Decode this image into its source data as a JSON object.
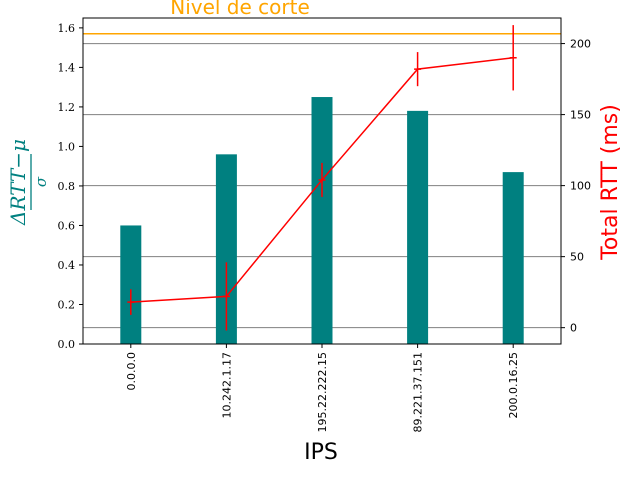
{
  "chart_data": {
    "type": "bar",
    "xlabel": "IPS",
    "categories": [
      "0.0.0.0",
      "10.242.1.17",
      "195.22.222.15",
      "89.221.37.151",
      "200.0.16.25"
    ],
    "ylabel_left": {
      "numerator": "ΔRTT−μ",
      "denominator": "σ"
    },
    "ylabel_right": "Total RTT (ms)",
    "left_axis": {
      "ylim": [
        0,
        1.65
      ],
      "ticks": [
        "0.0",
        "0.2",
        "0.4",
        "0.6",
        "0.8",
        "1.0",
        "1.2",
        "1.4",
        "1.6"
      ]
    },
    "right_axis": {
      "ylim": [
        -11.5,
        218
      ],
      "ticks": [
        "0",
        "50",
        "100",
        "150",
        "200"
      ]
    },
    "bars": {
      "name": "ΔRTT−μ / σ",
      "color": "#008080",
      "values": [
        0.6,
        0.96,
        1.25,
        1.18,
        0.87
      ]
    },
    "line": {
      "name": "Total RTT (ms)",
      "color": "#ff0000",
      "values": [
        18,
        22,
        104,
        182,
        190
      ],
      "errors": [
        9,
        24,
        12,
        12,
        23
      ]
    },
    "cutoff": {
      "label": "Nivel de corte",
      "value": 1.57,
      "color": "#ffa500"
    },
    "gridlines_right_axis": [
      0,
      50,
      100,
      150,
      200
    ],
    "grid_color": "#808080"
  }
}
